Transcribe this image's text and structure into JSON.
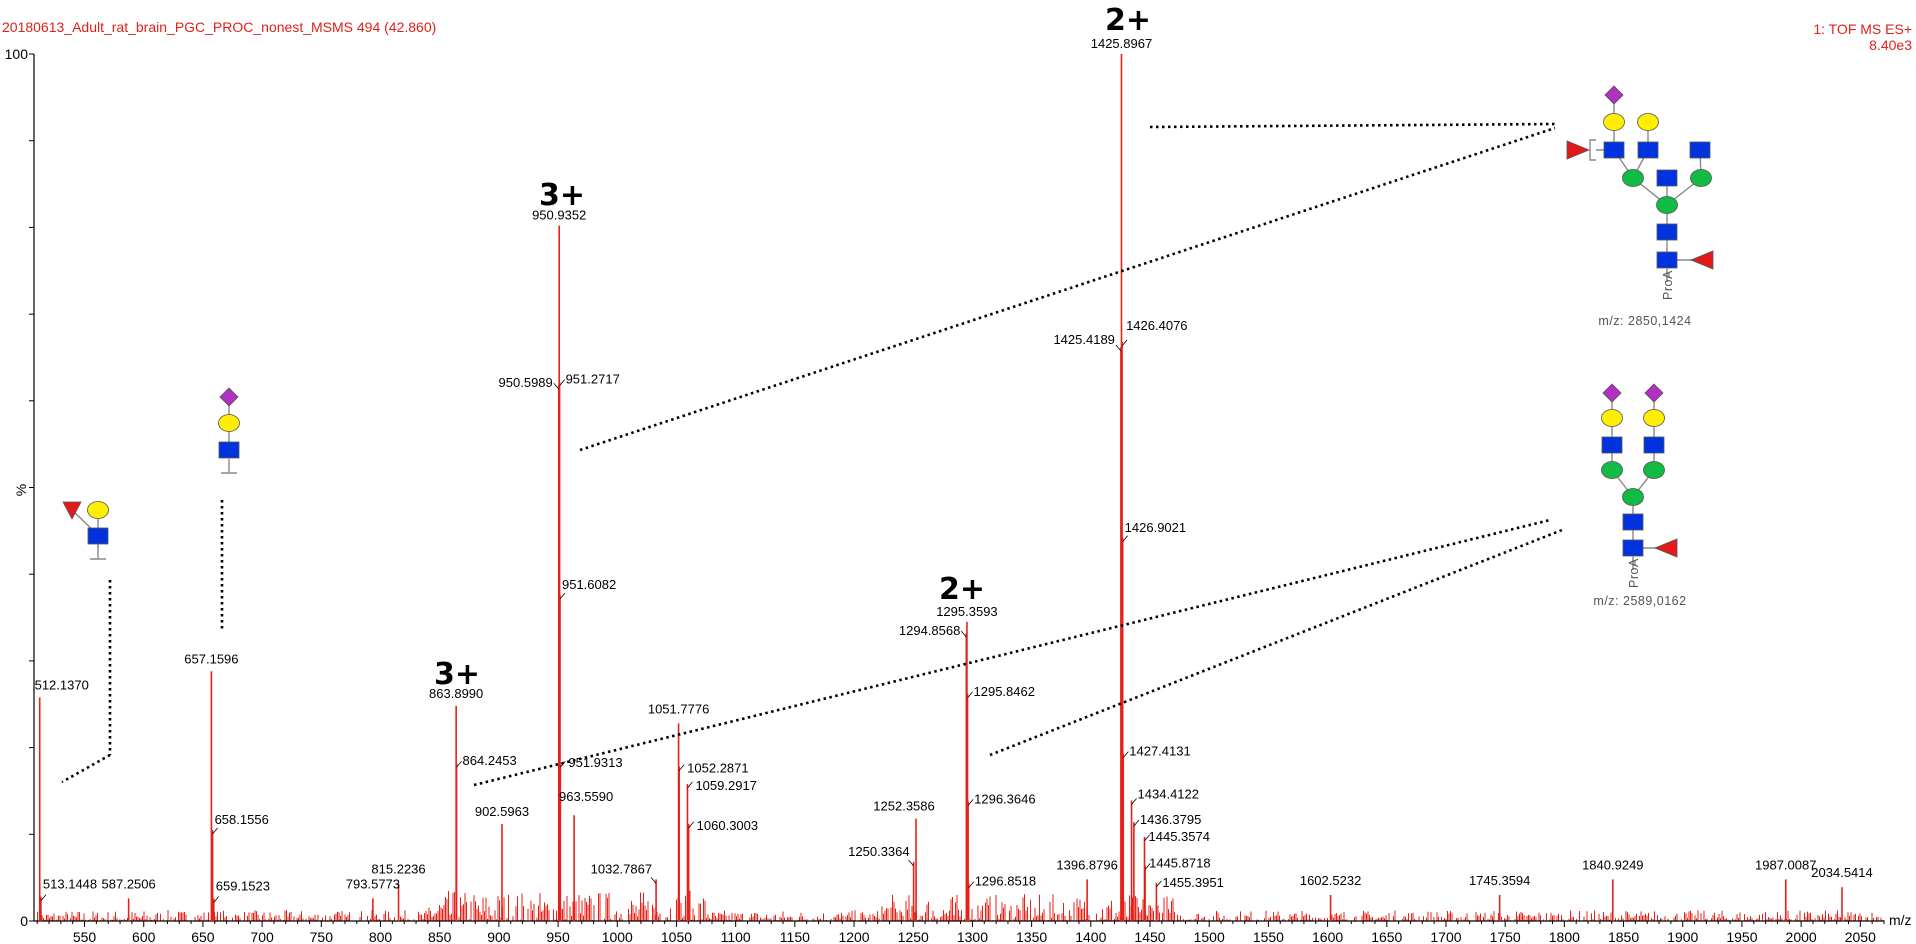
{
  "header": {
    "title": "20180613_Adult_rat_brain_PGC_PROC_nonest_MSMS 494 (42.860)",
    "instrument": "1: TOF MS ES+",
    "intensity_max": "8.40e3"
  },
  "colors": {
    "spectrum": "#e8201a",
    "axis": "#000000",
    "glycan_fucose": "#e21a1a",
    "glycan_galactose": "#ffee00",
    "glycan_glcnac": "#0033dd",
    "glycan_mannose": "#11bb44",
    "glycan_neuac": "#b030c0"
  },
  "chart_data": {
    "type": "line",
    "title": "",
    "xlabel": "m/z",
    "ylabel": "%",
    "xlim": [
      509,
      2070
    ],
    "ylim": [
      0,
      100
    ],
    "y_ticks": [
      "0",
      "100"
    ],
    "x_ticks": [
      550,
      600,
      650,
      700,
      750,
      800,
      850,
      900,
      950,
      1000,
      1050,
      1100,
      1150,
      1200,
      1250,
      1300,
      1350,
      1400,
      1450,
      1500,
      1550,
      1600,
      1650,
      1700,
      1750,
      1800,
      1850,
      1900,
      1950,
      2000,
      2050
    ],
    "peaks": [
      {
        "mz": 512.137,
        "label": "512.1370",
        "intensity": 25.8
      },
      {
        "mz": 513.1448,
        "label": "513.1448",
        "intensity": 2.8
      },
      {
        "mz": 587.2506,
        "label": "587.2506",
        "intensity": 2.6
      },
      {
        "mz": 657.1596,
        "label": "657.1596",
        "intensity": 28.8
      },
      {
        "mz": 658.1556,
        "label": "658.1556",
        "intensity": 10.5
      },
      {
        "mz": 659.1523,
        "label": "659.1523",
        "intensity": 2.6
      },
      {
        "mz": 793.5773,
        "label": "793.5773",
        "intensity": 2.6
      },
      {
        "mz": 815.2236,
        "label": "815.2236",
        "intensity": 4.3
      },
      {
        "mz": 863.899,
        "label": "863.8990",
        "intensity": 24.8
      },
      {
        "mz": 864.2453,
        "label": "864.2453",
        "intensity": 18.2
      },
      {
        "mz": 902.5963,
        "label": "902.5963",
        "intensity": 11.2
      },
      {
        "mz": 950.5989,
        "label": "950.5989",
        "intensity": 61.8
      },
      {
        "mz": 950.9352,
        "label": "950.9352",
        "intensity": 80.2
      },
      {
        "mz": 951.2717,
        "label": "951.2717",
        "intensity": 62.2
      },
      {
        "mz": 951.6082,
        "label": "951.6082",
        "intensity": 37.6
      },
      {
        "mz": 951.9313,
        "label": "951.9313",
        "intensity": 18.2
      },
      {
        "mz": 963.559,
        "label": "963.5590",
        "intensity": 12.2
      },
      {
        "mz": 1032.7867,
        "label": "1032.7867",
        "intensity": 4.8
      },
      {
        "mz": 1051.7776,
        "label": "1051.7776",
        "intensity": 22.8
      },
      {
        "mz": 1052.2871,
        "label": "1052.2871",
        "intensity": 17.8
      },
      {
        "mz": 1059.2917,
        "label": "1059.2917",
        "intensity": 15.8
      },
      {
        "mz": 1060.3003,
        "label": "1060.3003",
        "intensity": 11.2
      },
      {
        "mz": 1250.3364,
        "label": "1250.3364",
        "intensity": 6.8
      },
      {
        "mz": 1252.3586,
        "label": "1252.3586",
        "intensity": 11.8
      },
      {
        "mz": 1294.8568,
        "label": "1294.8568",
        "intensity": 33.2
      },
      {
        "mz": 1295.3593,
        "label": "1295.3593",
        "intensity": 34.5
      },
      {
        "mz": 1295.8462,
        "label": "1295.8462",
        "intensity": 26.2
      },
      {
        "mz": 1296.3646,
        "label": "1296.3646",
        "intensity": 13.8
      },
      {
        "mz": 1296.8518,
        "label": "1296.8518",
        "intensity": 4.3
      },
      {
        "mz": 1396.8796,
        "label": "1396.8796",
        "intensity": 4.8
      },
      {
        "mz": 1425.4189,
        "label": "1425.4189",
        "intensity": 66.2
      },
      {
        "mz": 1425.8967,
        "label": "1425.8967",
        "intensity": 100.0
      },
      {
        "mz": 1426.4076,
        "label": "1426.4076",
        "intensity": 66.8
      },
      {
        "mz": 1426.9021,
        "label": "1426.9021",
        "intensity": 44.2
      },
      {
        "mz": 1427.4131,
        "label": "1427.4131",
        "intensity": 19.3
      },
      {
        "mz": 1434.4122,
        "label": "1434.4122",
        "intensity": 13.9
      },
      {
        "mz": 1436.3795,
        "label": "1436.3795",
        "intensity": 11.4
      },
      {
        "mz": 1445.3574,
        "label": "1445.3574",
        "intensity": 9.7
      },
      {
        "mz": 1445.8718,
        "label": "1445.8718",
        "intensity": 6.4
      },
      {
        "mz": 1455.3951,
        "label": "1455.3951",
        "intensity": 4.4
      },
      {
        "mz": 1602.5232,
        "label": "1602.5232",
        "intensity": 3.0
      },
      {
        "mz": 1745.3594,
        "label": "1745.3594",
        "intensity": 3.0
      },
      {
        "mz": 1840.9249,
        "label": "1840.9249",
        "intensity": 4.8
      },
      {
        "mz": 1987.0087,
        "label": "1987.0087",
        "intensity": 4.8
      },
      {
        "mz": 2034.5414,
        "label": "2034.5414",
        "intensity": 3.9
      }
    ],
    "annotations": [
      {
        "text": "2+",
        "near_mz": 1425.8967
      },
      {
        "text": "3+",
        "near_mz": 950.9352
      },
      {
        "text": "3+",
        "near_mz": 863.899
      },
      {
        "text": "2+",
        "near_mz": 1295.3593
      }
    ],
    "glycan_structures": [
      {
        "label": "m/z: 2850,1424"
      },
      {
        "label": "m/z: 2589,0162"
      }
    ],
    "glycan_tags": [
      "ProA",
      "ProA"
    ],
    "grid": false,
    "legend": "none"
  }
}
